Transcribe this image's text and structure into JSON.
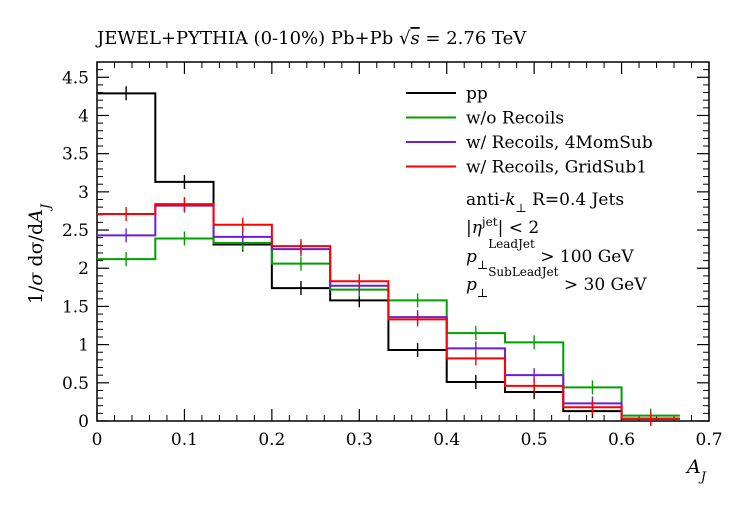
{
  "chart_data": {
    "type": "line",
    "title": "JEWEL+PYTHIA (0-10%) Pb+Pb √s = 2.76 TeV",
    "xlabel": "A_J",
    "ylabel": "1/σ dσ/dA_J",
    "xlim": [
      0,
      0.7
    ],
    "ylim": [
      0,
      4.7
    ],
    "x_ticks": [
      "0",
      "0.1",
      "0.2",
      "0.3",
      "0.4",
      "0.5",
      "0.6",
      "0.7"
    ],
    "y_ticks": [
      "0",
      "0.5",
      "1",
      "1.5",
      "2",
      "2.5",
      "3",
      "3.5",
      "4",
      "4.5"
    ],
    "bin_edges": [
      0,
      0.0667,
      0.1333,
      0.2,
      0.2667,
      0.3333,
      0.4,
      0.4667,
      0.5333,
      0.6,
      0.6667
    ],
    "bin_centers": [
      0.0333,
      0.1,
      0.1667,
      0.2333,
      0.3,
      0.3667,
      0.4333,
      0.5,
      0.5667,
      0.6333
    ],
    "legend_position": "top-right",
    "series": [
      {
        "name": "pp",
        "color": "#000000",
        "values": [
          4.29,
          3.13,
          2.31,
          1.74,
          1.58,
          0.93,
          0.51,
          0.38,
          0.13,
          0.03
        ]
      },
      {
        "name": "w/o Recoils",
        "color": "#00a000",
        "values": [
          2.12,
          2.39,
          2.33,
          2.06,
          1.72,
          1.58,
          1.15,
          1.03,
          0.44,
          0.07
        ]
      },
      {
        "name": "w/ Recoils, 4MomSub",
        "color": "#6a1fd8",
        "values": [
          2.43,
          2.82,
          2.41,
          2.25,
          1.77,
          1.36,
          0.95,
          0.6,
          0.23,
          0.03
        ]
      },
      {
        "name": "w/ Recoils, GridSub1",
        "color": "#ff0000",
        "values": [
          2.71,
          2.84,
          2.57,
          2.29,
          1.83,
          1.33,
          0.82,
          0.46,
          0.18,
          0.03
        ]
      }
    ],
    "annotations": [
      "anti-k⊥ R=0.4 Jets",
      "|η^jet| < 2",
      "p⊥^LeadJet > 100 GeV",
      "p⊥^SubLeadJet > 30 GeV"
    ]
  },
  "title_parts": {
    "prefix": "JEWEL+PYTHIA (0-10%) Pb+Pb ",
    "sqrt_symbol": "√",
    "s": "s",
    "suffix": " = 2.76 TeV"
  },
  "ylabel_parts": {
    "lhs": "1/",
    "sigma": "σ",
    "dsigma": " dσ/d",
    "A": "A",
    "sub": "J"
  },
  "xlabel_parts": {
    "A": "A",
    "sub": "J"
  },
  "annotation_parts": {
    "line1_pre": "anti-",
    "line1_k": "k",
    "line1_sub": "⊥",
    "line1_post": " R=0.4 Jets",
    "line2_pre": "|",
    "line2_eta": "η",
    "line2_sup": "jet",
    "line2_post": "| < 2",
    "line3_p": "p",
    "line3_sub": "⊥",
    "line3_sup": "LeadJet",
    "line3_post": " > 100 GeV",
    "line4_p": "p",
    "line4_sub": "⊥",
    "line4_sup": "SubLeadJet",
    "line4_post": " > 30 GeV"
  }
}
